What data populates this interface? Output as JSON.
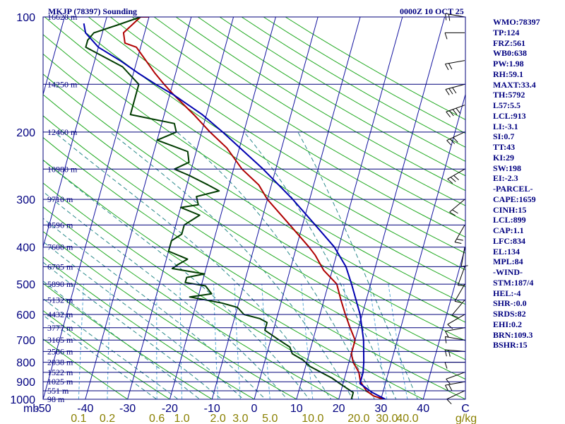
{
  "title": "MKJP (78397) Sounding",
  "datetime": "0000Z 10 OCT 25",
  "chart_data": {
    "type": "line",
    "subtype": "skew-T log-P sounding",
    "pressure_axis": {
      "ticks": [
        100,
        200,
        300,
        400,
        500,
        600,
        700,
        800,
        900,
        1000
      ],
      "range_mb": [
        100,
        1000
      ],
      "label": "mb",
      "log_scale": true
    },
    "temperature_axis": {
      "ticks": [
        -50,
        -40,
        -30,
        -20,
        -10,
        0,
        10,
        20,
        30,
        40
      ],
      "range_c": [
        -50,
        50
      ],
      "label": "C"
    },
    "mixing_ratio_axis": {
      "ticks": [
        "0.1",
        "0.2",
        "0.6",
        "1.0",
        "2.0",
        "3.0",
        "5.0",
        "10.0",
        "20.0",
        "30.0",
        "40.0"
      ],
      "label": "g/kg"
    },
    "height_labels": [
      {
        "p": 100,
        "label": "16620 m"
      },
      {
        "p": 150,
        "label": "14250 m"
      },
      {
        "p": 200,
        "label": "12460 m"
      },
      {
        "p": 250,
        "label": "10980 m"
      },
      {
        "p": 300,
        "label": "9710 m"
      },
      {
        "p": 350,
        "label": "8596 m"
      },
      {
        "p": 400,
        "label": "7600 m"
      },
      {
        "p": 450,
        "label": "6705 m"
      },
      {
        "p": 500,
        "label": "5890 m"
      },
      {
        "p": 550,
        "label": "5132 m"
      },
      {
        "p": 600,
        "label": "4432 m"
      },
      {
        "p": 650,
        "label": "3777 m"
      },
      {
        "p": 700,
        "label": "3165 m"
      },
      {
        "p": 750,
        "label": "2586 m"
      },
      {
        "p": 800,
        "label": "2038 m"
      },
      {
        "p": 850,
        "label": "1522 m"
      },
      {
        "p": 900,
        "label": "1025 m"
      },
      {
        "p": 950,
        "label": "551 m"
      },
      {
        "p": 1000,
        "label": "98 m"
      }
    ],
    "series": [
      {
        "name": "Temperature",
        "color": "#b00000",
        "points": [
          [
            1005,
            31.5
          ],
          [
            980,
            28
          ],
          [
            950,
            26
          ],
          [
            900,
            24
          ],
          [
            850,
            23
          ],
          [
            800,
            21
          ],
          [
            760,
            20
          ],
          [
            700,
            20
          ],
          [
            650,
            18
          ],
          [
            600,
            16
          ],
          [
            550,
            14
          ],
          [
            500,
            12
          ],
          [
            460,
            8
          ],
          [
            420,
            5
          ],
          [
            400,
            3
          ],
          [
            350,
            -3
          ],
          [
            300,
            -10
          ],
          [
            275,
            -13
          ],
          [
            250,
            -18
          ],
          [
            220,
            -23
          ],
          [
            200,
            -28
          ],
          [
            180,
            -33
          ],
          [
            160,
            -39
          ],
          [
            150,
            -42
          ],
          [
            140,
            -45
          ],
          [
            120,
            -51
          ],
          [
            117,
            -54
          ],
          [
            110,
            -55
          ],
          [
            100,
            -52
          ],
          [
            100,
            -50
          ]
        ]
      },
      {
        "name": "Dewpoint",
        "color": "#003c00",
        "points": [
          [
            1005,
            23
          ],
          [
            960,
            23
          ],
          [
            920,
            20
          ],
          [
            880,
            17
          ],
          [
            850,
            14
          ],
          [
            820,
            11
          ],
          [
            790,
            9
          ],
          [
            760,
            6
          ],
          [
            730,
            5
          ],
          [
            700,
            2
          ],
          [
            660,
            -2
          ],
          [
            630,
            -2
          ],
          [
            615,
            -4
          ],
          [
            600,
            -8
          ],
          [
            575,
            -10
          ],
          [
            560,
            -14
          ],
          [
            540,
            -22
          ],
          [
            530,
            -17
          ],
          [
            505,
            -19
          ],
          [
            495,
            -24
          ],
          [
            480,
            -24
          ],
          [
            470,
            -20
          ],
          [
            455,
            -28
          ],
          [
            445,
            -27
          ],
          [
            430,
            -25
          ],
          [
            410,
            -30
          ],
          [
            400,
            -30
          ],
          [
            385,
            -30
          ],
          [
            370,
            -28
          ],
          [
            350,
            -28
          ],
          [
            330,
            -25
          ],
          [
            315,
            -30
          ],
          [
            310,
            -26
          ],
          [
            295,
            -27
          ],
          [
            285,
            -22
          ],
          [
            275,
            -25
          ],
          [
            260,
            -30
          ],
          [
            250,
            -34
          ],
          [
            240,
            -31
          ],
          [
            225,
            -32
          ],
          [
            210,
            -40
          ],
          [
            200,
            -36
          ],
          [
            190,
            -37
          ],
          [
            180,
            -48
          ],
          [
            150,
            -48
          ],
          [
            135,
            -53
          ],
          [
            120,
            -63
          ],
          [
            115,
            -63
          ],
          [
            110,
            -62
          ],
          [
            105,
            -57
          ],
          [
            100,
            -52
          ]
        ]
      },
      {
        "name": "Parcel",
        "color": "#0000b0",
        "points": [
          [
            1005,
            31.5
          ],
          [
            960,
            27.5
          ],
          [
            910,
            24
          ],
          [
            850,
            24
          ],
          [
            800,
            23.5
          ],
          [
            700,
            22
          ],
          [
            600,
            19.5
          ],
          [
            500,
            15.5
          ],
          [
            450,
            13
          ],
          [
            400,
            9
          ],
          [
            350,
            3
          ],
          [
            300,
            -4
          ],
          [
            250,
            -13
          ],
          [
            200,
            -25
          ],
          [
            180,
            -31
          ],
          [
            160,
            -39
          ],
          [
            150,
            -44
          ],
          [
            140,
            -49
          ],
          [
            130,
            -54
          ],
          [
            120,
            -60
          ],
          [
            110,
            -64
          ],
          [
            104,
            -65
          ]
        ]
      }
    ]
  },
  "indices": [
    "WMO:78397",
    "TP:124",
    "FRZ:561",
    "WB0:638",
    "PW:1.98",
    "RH:59.1",
    "MAXT:33.4",
    "TH:5792",
    "L57:5.5",
    "LCL:913",
    "LI:-3.1",
    "SI:0.7",
    "TT:43",
    "KI:29",
    "SW:198",
    "EI:-2.3",
    "-PARCEL-",
    "CAPE:1659",
    "CINH:15",
    "LCL:899",
    "CAP:1.1",
    "LFC:834",
    "EL:134",
    "MPL:84",
    "-WIND-",
    "STM:187/4",
    "HEL:-4",
    "SHR-:0.0",
    "SRDS:82",
    "EHI:0.2",
    "BRN:109.3",
    "BSHR:15"
  ],
  "colors": {
    "isobar": "#00007a",
    "isotherm": "#1414a0",
    "dry_adiabat": "#22aa22",
    "moist_adiabat": "#2a8a8a",
    "mixing_ratio": "#5aaad8",
    "temperature": "#b00000",
    "dewpoint": "#003c00",
    "parcel": "#0000b0",
    "label": "#000080",
    "mixing_label": "#8a8000",
    "wind": "#000000"
  }
}
